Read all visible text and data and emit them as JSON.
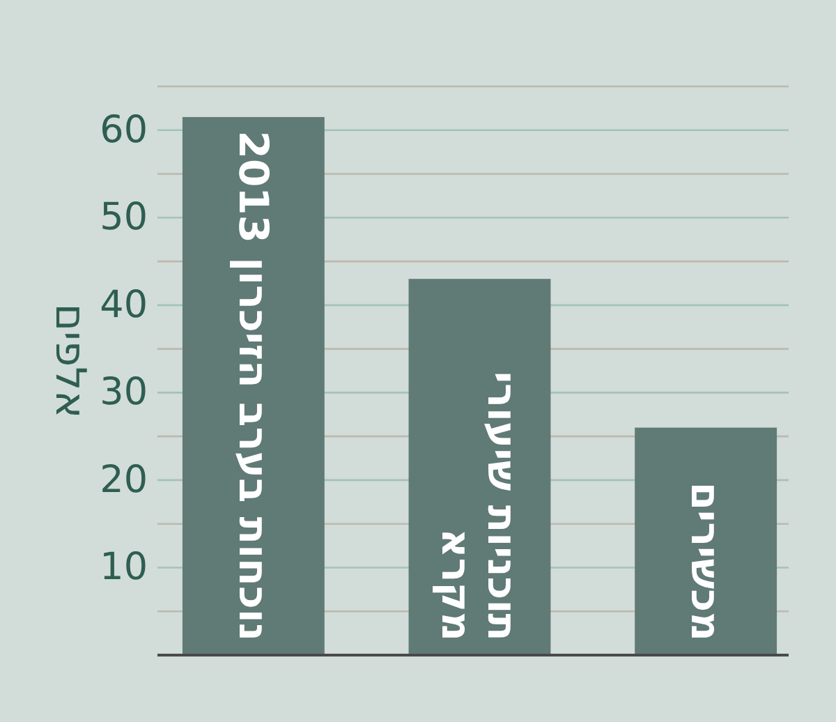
{
  "chart_data": {
    "type": "bar",
    "ylabel": "אלפים",
    "categories": [
      "נוכחות בערב הזיכרון 2013",
      "תוכניות שיעורי מקרא",
      "מכשירים"
    ],
    "values": [
      61.5,
      43,
      26
    ],
    "color": "#607a76",
    "ylim": [
      0,
      65
    ],
    "yticks": [
      10,
      20,
      30,
      40,
      50,
      60
    ],
    "grid": "y"
  }
}
